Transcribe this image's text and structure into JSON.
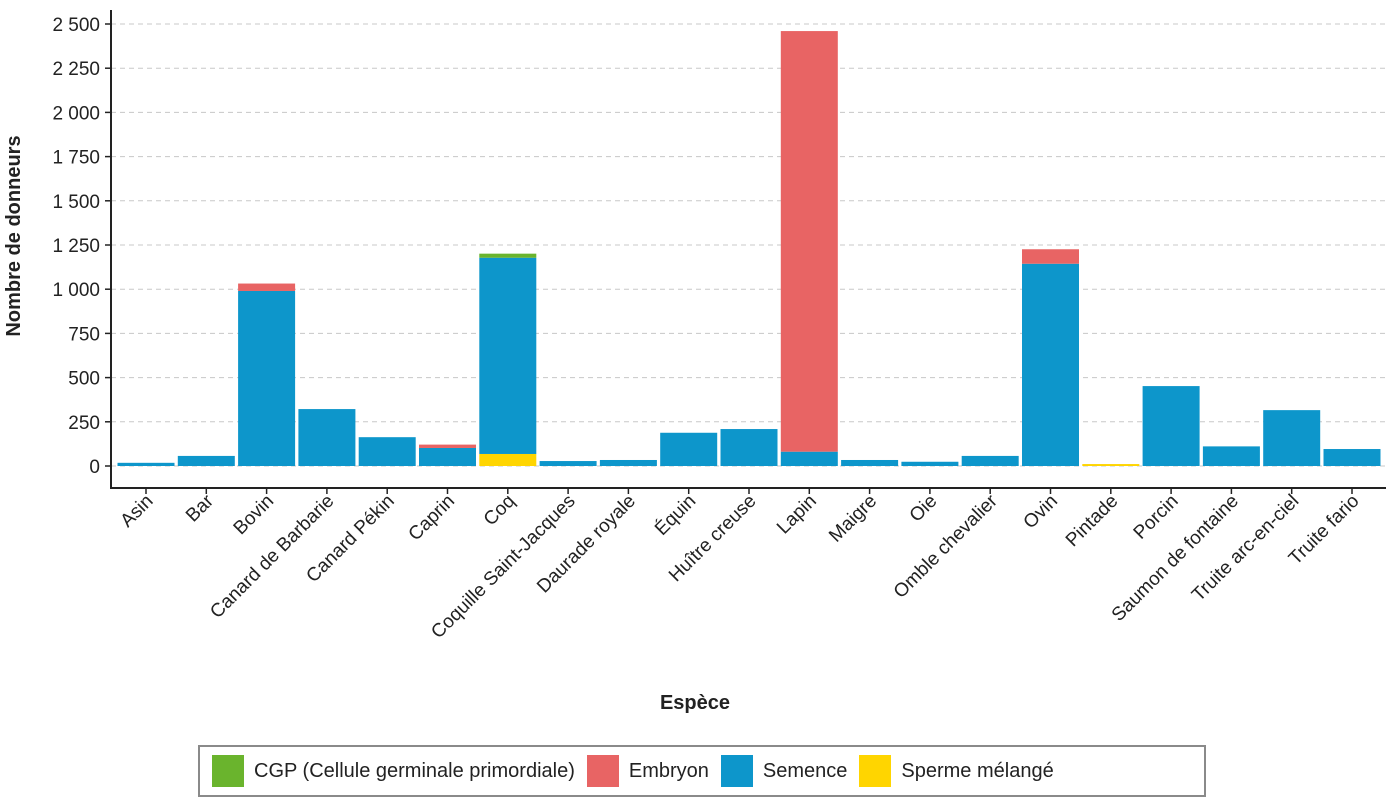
{
  "chart_data": {
    "type": "bar",
    "stacked": true,
    "title": "",
    "xlabel": "Espèce",
    "ylabel": "Nombre de donneurs",
    "ylim": [
      0,
      2500
    ],
    "yticks": [
      0,
      250,
      500,
      750,
      1000,
      1250,
      1500,
      1750,
      2000,
      2250,
      2500
    ],
    "ytick_labels": [
      "0",
      "250",
      "500",
      "750",
      "1 000",
      "1 250",
      "1 500",
      "1 750",
      "2 000",
      "2 250",
      "2 500"
    ],
    "grid": "horizontal dashed",
    "legend_position": "bottom",
    "categories": [
      "Asin",
      "Bar",
      "Bovin",
      "Canard de Barbarie",
      "Canard Pékin",
      "Caprin",
      "Coq",
      "Coquille Saint-Jacques",
      "Daurade royale",
      "Équin",
      "Huître creuse",
      "Lapin",
      "Maigre",
      "Oie",
      "Omble chevalier",
      "Ovin",
      "Pintade",
      "Porcin",
      "Saumon de fontaine",
      "Truite arc-en-ciel",
      "Truite fario"
    ],
    "stack_order": [
      "Sperme mélangé",
      "Semence",
      "Embryon",
      "CGP (Cellule germinale primordiale)"
    ],
    "series": [
      {
        "name": "CGP (Cellule germinale primordiale)",
        "color": "#6AB42D",
        "values": [
          0,
          0,
          0,
          0,
          0,
          0,
          23,
          0,
          0,
          0,
          0,
          0,
          0,
          0,
          0,
          0,
          0,
          0,
          0,
          0,
          0
        ]
      },
      {
        "name": "Embryon",
        "color": "#E86464",
        "values": [
          0,
          0,
          42,
          0,
          0,
          19,
          0,
          0,
          0,
          0,
          0,
          2379,
          0,
          0,
          0,
          82,
          0,
          0,
          0,
          0,
          0
        ]
      },
      {
        "name": "Semence",
        "color": "#0D96CB",
        "values": [
          18,
          57,
          990,
          322,
          163,
          102,
          1110,
          28,
          34,
          188,
          209,
          81,
          34,
          24,
          57,
          1144,
          0,
          452,
          111,
          316,
          96
        ]
      },
      {
        "name": "Sperme mélangé",
        "color": "#FFD500",
        "values": [
          0,
          0,
          0,
          0,
          0,
          0,
          68,
          0,
          0,
          0,
          0,
          0,
          0,
          0,
          0,
          0,
          11,
          0,
          0,
          0,
          0
        ]
      }
    ]
  },
  "legend": {
    "items": [
      {
        "label": "CGP (Cellule germinale primordiale)",
        "color": "#6AB42D"
      },
      {
        "label": "Embryon",
        "color": "#E86464"
      },
      {
        "label": "Semence",
        "color": "#0D96CB"
      },
      {
        "label": "Sperme mélangé",
        "color": "#FFD500"
      }
    ]
  }
}
